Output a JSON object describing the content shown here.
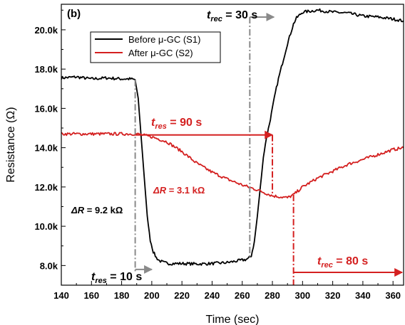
{
  "chart_data": {
    "type": "line",
    "panel_label": "(b)",
    "xlabel": "Time (sec)",
    "ylabel": "Resistance (Ω)",
    "xlim": [
      140,
      367
    ],
    "ylim": [
      7000,
      21300
    ],
    "x_ticks": [
      140,
      160,
      180,
      200,
      220,
      240,
      260,
      280,
      300,
      320,
      340,
      360
    ],
    "x_tick_labels": [
      "140",
      "160",
      "180",
      "200",
      "220",
      "240",
      "260",
      "280",
      "300",
      "320",
      "340",
      "360"
    ],
    "y_ticks": [
      8000,
      10000,
      12000,
      14000,
      16000,
      18000,
      20000
    ],
    "y_tick_labels": [
      "8.0k",
      "10.0k",
      "12.0k",
      "14.0k",
      "16.0k",
      "18.0k",
      "20.0k"
    ],
    "legend": {
      "placement": "top-left"
    },
    "series": [
      {
        "name": "Before μ-GC (S1)",
        "color": "#000000",
        "x": [
          140,
          150,
          160,
          170,
          180,
          186,
          189,
          191,
          193,
          195,
          197,
          199,
          201,
          203,
          205,
          208,
          212,
          220,
          230,
          240,
          250,
          258,
          262,
          264,
          266,
          268,
          270,
          272,
          274,
          276,
          278,
          280,
          282,
          284,
          286,
          288,
          290,
          292,
          294,
          296,
          300,
          310,
          320,
          330,
          340,
          350,
          360,
          367
        ],
        "y": [
          17550,
          17600,
          17500,
          17550,
          17500,
          17500,
          17450,
          16500,
          14500,
          12500,
          10500,
          9300,
          8700,
          8400,
          8250,
          8150,
          8100,
          8100,
          8080,
          8100,
          8150,
          8250,
          8300,
          8350,
          8500,
          9200,
          10500,
          12000,
          13500,
          14500,
          15200,
          16000,
          16800,
          17500,
          18100,
          18700,
          19300,
          19800,
          20300,
          20600,
          20900,
          21000,
          20900,
          20850,
          20700,
          20650,
          20550,
          20450
        ]
      },
      {
        "name": "After μ-GC (S2)",
        "color": "#d42020",
        "x": [
          140,
          160,
          180,
          190,
          200,
          210,
          220,
          230,
          240,
          250,
          260,
          270,
          280,
          290,
          294,
          300,
          310,
          320,
          330,
          340,
          350,
          360,
          367
        ],
        "y": [
          14700,
          14700,
          14700,
          14700,
          14550,
          14300,
          13800,
          13200,
          12750,
          12400,
          12100,
          11850,
          11550,
          11450,
          11600,
          12000,
          12450,
          12800,
          13150,
          13400,
          13650,
          13900,
          14000
        ]
      }
    ],
    "annotations": {
      "trec_s1": {
        "label": "t",
        "sub": "rec",
        "value": "= 30 s"
      },
      "tres_s2": {
        "label": "t",
        "sub": "res",
        "value": "= 90 s"
      },
      "dR_s2": {
        "label": "ΔR",
        "value": "= 3.1 kΩ"
      },
      "dR_s1": {
        "label": "ΔR",
        "value": "= 9.2 kΩ"
      },
      "tres_s1": {
        "label": "t",
        "sub": "res",
        "value": "= 10 s"
      },
      "trec_s2": {
        "label": "t",
        "sub": "rec",
        "value": "= 80 s"
      }
    },
    "markers": {
      "s1_start": 189,
      "s1_fall_end": 199,
      "s1_rec_start": 265,
      "s1_rec_end": 295,
      "s2_res_end": 280,
      "s2_rec_start": 294
    }
  }
}
